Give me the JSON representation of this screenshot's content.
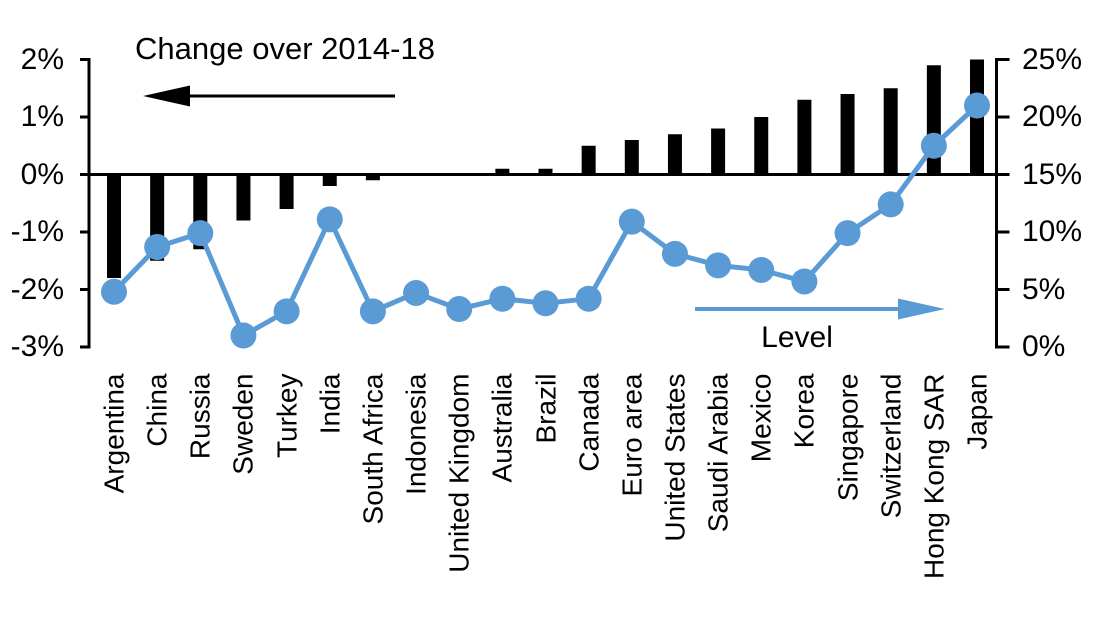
{
  "chart_data": {
    "type": "combo-bar-line",
    "categories": [
      "Argentina",
      "China",
      "Russia",
      "Sweden",
      "Turkey",
      "India",
      "South Africa",
      "Indonesia",
      "United Kingdom",
      "Australia",
      "Brazil",
      "Canada",
      "Euro area",
      "United States",
      "Saudi Arabia",
      "Mexico",
      "Korea",
      "Singapore",
      "Switzerland",
      "Hong Kong SAR",
      "Japan"
    ],
    "series": [
      {
        "name": "Change over 2014-18",
        "type": "bar",
        "axis": "left",
        "color": "#000000",
        "values": [
          -1.8,
          -1.5,
          -1.3,
          -0.8,
          -0.6,
          -0.2,
          -0.1,
          0,
          0,
          0.1,
          0.1,
          0.5,
          0.6,
          0.7,
          0.8,
          1.0,
          1.3,
          1.4,
          1.5,
          1.9,
          2.0
        ]
      },
      {
        "name": "Level",
        "type": "line",
        "axis": "right",
        "color": "#5B9BD5",
        "values": [
          4.8,
          8.7,
          9.9,
          1.0,
          3.1,
          11.1,
          3.1,
          4.7,
          3.3,
          4.2,
          3.8,
          4.2,
          10.9,
          8.1,
          7.1,
          6.7,
          5.7,
          9.9,
          12.4,
          17.5,
          21.0
        ]
      }
    ],
    "left_axis": {
      "min": -3,
      "max": 2,
      "tick_labels": [
        "2%",
        "1%",
        "0%",
        "-1%",
        "-2%",
        "-3%"
      ],
      "side": "left"
    },
    "right_axis": {
      "min": 0,
      "max": 25,
      "tick_labels": [
        "25%",
        "20%",
        "15%",
        "10%",
        "5%",
        "0%"
      ],
      "side": "right"
    },
    "annotations": {
      "bar_arrow_direction": "left",
      "line_arrow_direction": "right"
    },
    "grid": false,
    "legend_position": "in-chart arrows",
    "title": "Change over 2014-18",
    "xlabel": "",
    "ylabel": ""
  },
  "colors": {
    "bar": "#000000",
    "line": "#5B9BD5",
    "axis": "#000000",
    "background": "#FFFFFF",
    "text": "#000000"
  }
}
